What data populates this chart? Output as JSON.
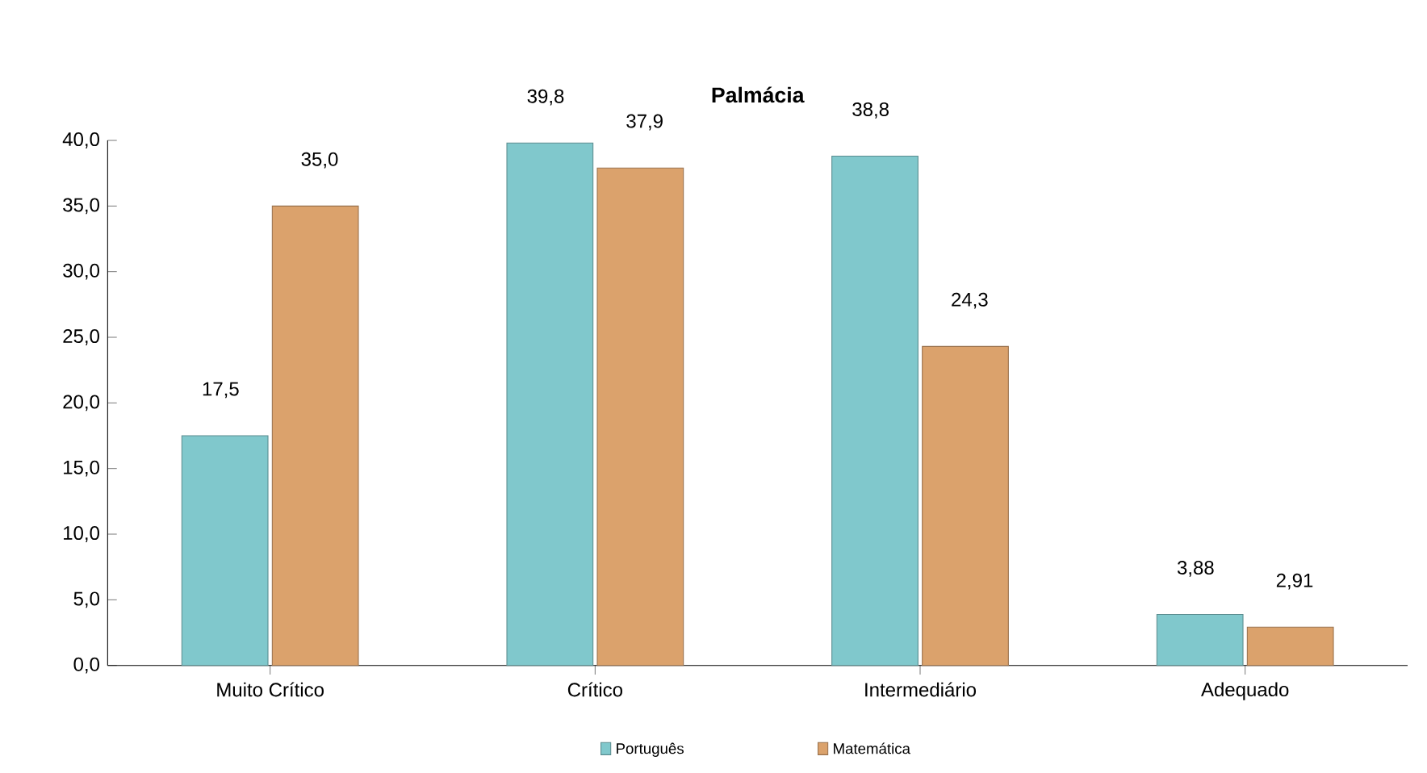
{
  "chart_data": {
    "type": "bar",
    "title": "Palmácia",
    "categories": [
      "Muito Crítico",
      "Crítico",
      "Intermediário",
      "Adequado"
    ],
    "series": [
      {
        "name": "Português",
        "color": "#80c8cc",
        "values": [
          17.5,
          39.8,
          38.8,
          3.88
        ],
        "value_labels": [
          "17,5",
          "39,8",
          "38,8",
          "3,88"
        ]
      },
      {
        "name": "Matemática",
        "color": "#dba26c",
        "values": [
          35.0,
          37.9,
          24.3,
          2.91
        ],
        "value_labels": [
          "35,0",
          "37,9",
          "24,3",
          "2,91"
        ]
      }
    ],
    "ylim": [
      0,
      40
    ],
    "yticks": [
      {
        "value": 0,
        "label": "0,0"
      },
      {
        "value": 5,
        "label": "5,0"
      },
      {
        "value": 10,
        "label": "10,0"
      },
      {
        "value": 15,
        "label": "15,0"
      },
      {
        "value": 20,
        "label": "20,0"
      },
      {
        "value": 25,
        "label": "25,0"
      },
      {
        "value": 30,
        "label": "30,0"
      },
      {
        "value": 35,
        "label": "35,0"
      },
      {
        "value": 40,
        "label": "40,0"
      }
    ],
    "grid": false,
    "legend": "bottom"
  }
}
